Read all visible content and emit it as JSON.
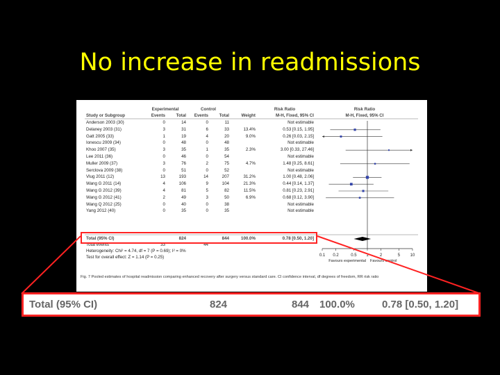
{
  "slide": {
    "title": "No increase in readmissions"
  },
  "headers": {
    "experimental": "Experimental",
    "control": "Control",
    "risk_ratio": "Risk Ratio",
    "risk_ratio_plot": "Risk Ratio",
    "study": "Study or Subgroup",
    "events": "Events",
    "total": "Total",
    "events2": "Events",
    "total2": "Total",
    "weight": "Weight",
    "method": "M-H, Fixed, 95% CI",
    "method_plot": "M-H, Fixed, 95% CI"
  },
  "studies": [
    {
      "name": "Anderson 2003 (30)",
      "e_ev": "0",
      "e_tot": "14",
      "c_ev": "0",
      "c_tot": "11",
      "weight": "",
      "rr": "Not estimable"
    },
    {
      "name": "Delaney 2003 (31)",
      "e_ev": "3",
      "e_tot": "31",
      "c_ev": "6",
      "c_tot": "33",
      "weight": "13.4%",
      "rr": "0.53 [0.15, 1.95]"
    },
    {
      "name": "Gatt 2005 (33)",
      "e_ev": "1",
      "e_tot": "19",
      "c_ev": "4",
      "c_tot": "20",
      "weight": "9.0%",
      "rr": "0.26 [0.03, 2.15]"
    },
    {
      "name": "Ionescu 2009 (34)",
      "e_ev": "0",
      "e_tot": "48",
      "c_ev": "0",
      "c_tot": "48",
      "weight": "",
      "rr": "Not estimable"
    },
    {
      "name": "Khoo 2007 (35)",
      "e_ev": "3",
      "e_tot": "35",
      "c_ev": "1",
      "c_tot": "35",
      "weight": "2.3%",
      "rr": "3.00 [0.33, 27.46]"
    },
    {
      "name": "Lee 2011 (36)",
      "e_ev": "0",
      "e_tot": "46",
      "c_ev": "0",
      "c_tot": "54",
      "weight": "",
      "rr": "Not estimable"
    },
    {
      "name": "Muller 2009 (37)",
      "e_ev": "3",
      "e_tot": "76",
      "c_ev": "2",
      "c_tot": "75",
      "weight": "4.7%",
      "rr": "1.48 [0.25, 8.61]"
    },
    {
      "name": "Serclova 2009 (38)",
      "e_ev": "0",
      "e_tot": "51",
      "c_ev": "0",
      "c_tot": "52",
      "weight": "",
      "rr": "Not estimable"
    },
    {
      "name": "Vlug 2011 (12)",
      "e_ev": "13",
      "e_tot": "193",
      "c_ev": "14",
      "c_tot": "207",
      "weight": "31.2%",
      "rr": "1.00 [0.48, 2.06]"
    },
    {
      "name": "Wang G 2011 (14)",
      "e_ev": "4",
      "e_tot": "106",
      "c_ev": "9",
      "c_tot": "104",
      "weight": "21.3%",
      "rr": "0.44 [0.14, 1.37]"
    },
    {
      "name": "Wang G 2012 (39)",
      "e_ev": "4",
      "e_tot": "81",
      "c_ev": "5",
      "c_tot": "82",
      "weight": "11.5%",
      "rr": "0.81 [0.23, 2.91]"
    },
    {
      "name": "Wang G 2012 (41)",
      "e_ev": "2",
      "e_tot": "49",
      "c_ev": "3",
      "c_tot": "50",
      "weight": "6.9%",
      "rr": "0.68 [0.12, 3.90]"
    },
    {
      "name": "Wang Q 2012 (25)",
      "e_ev": "0",
      "e_tot": "40",
      "c_ev": "0",
      "c_tot": "38",
      "weight": "",
      "rr": "Not estimable"
    },
    {
      "name": "Yang 2012 (40)",
      "e_ev": "0",
      "e_tot": "35",
      "c_ev": "0",
      "c_tot": "35",
      "weight": "",
      "rr": "Not estimable"
    }
  ],
  "total_row": {
    "name": "Total (95% CI)",
    "e_tot": "824",
    "c_tot": "844",
    "weight": "100.0%",
    "rr": "0.78 [0.50, 1.20]"
  },
  "total_events": {
    "label": "Total events",
    "e": "33",
    "c": "44"
  },
  "heterogeneity": "Heterogeneity: Chi² = 4.74, df = 7 (P = 0.69); I² = 0%",
  "overall_effect": "Test for overall effect: Z = 1.14 (P = 0.25)",
  "favours": {
    "left": "Favours experimental",
    "right": "Favours control"
  },
  "caption": "Fig. 7 Pooled estimates of hospital readmission comparing enhanced recovery after surgery versus standard care. CI confidence interval, df degrees of freedom, RR risk ratio",
  "zoom": {
    "label": "Total (95% CI)",
    "e_tot": "824",
    "c_tot": "844",
    "weight": "100.0%",
    "rr": "0.78 [0.50, 1.20]"
  },
  "chart_data": {
    "type": "scatter",
    "title": "",
    "xlabel": "",
    "ylabel": "",
    "x_scale": "log",
    "xlim": [
      0.1,
      10
    ],
    "x_ticks": [
      "0.1",
      "0.2",
      "0.5",
      "1",
      "2",
      "5",
      "10"
    ],
    "points": [
      {
        "study": "Delaney 2003 (31)",
        "rr": 0.53,
        "lo": 0.15,
        "hi": 1.95,
        "weight": 13.4
      },
      {
        "study": "Gatt 2005 (33)",
        "rr": 0.26,
        "lo": 0.03,
        "hi": 2.15,
        "weight": 9.0
      },
      {
        "study": "Khoo 2007 (35)",
        "rr": 3.0,
        "lo": 0.33,
        "hi": 27.46,
        "weight": 2.3
      },
      {
        "study": "Muller 2009 (37)",
        "rr": 1.48,
        "lo": 0.25,
        "hi": 8.61,
        "weight": 4.7
      },
      {
        "study": "Vlug 2011 (12)",
        "rr": 1.0,
        "lo": 0.48,
        "hi": 2.06,
        "weight": 31.2
      },
      {
        "study": "Wang G 2011 (14)",
        "rr": 0.44,
        "lo": 0.14,
        "hi": 1.37,
        "weight": 21.3
      },
      {
        "study": "Wang G 2012 (39)",
        "rr": 0.81,
        "lo": 0.23,
        "hi": 2.91,
        "weight": 11.5
      },
      {
        "study": "Wang G 2012 (41)",
        "rr": 0.68,
        "lo": 0.12,
        "hi": 3.9,
        "weight": 6.9
      }
    ],
    "pooled": {
      "rr": 0.78,
      "lo": 0.5,
      "hi": 1.2
    },
    "marker_color": "#3344aa"
  }
}
